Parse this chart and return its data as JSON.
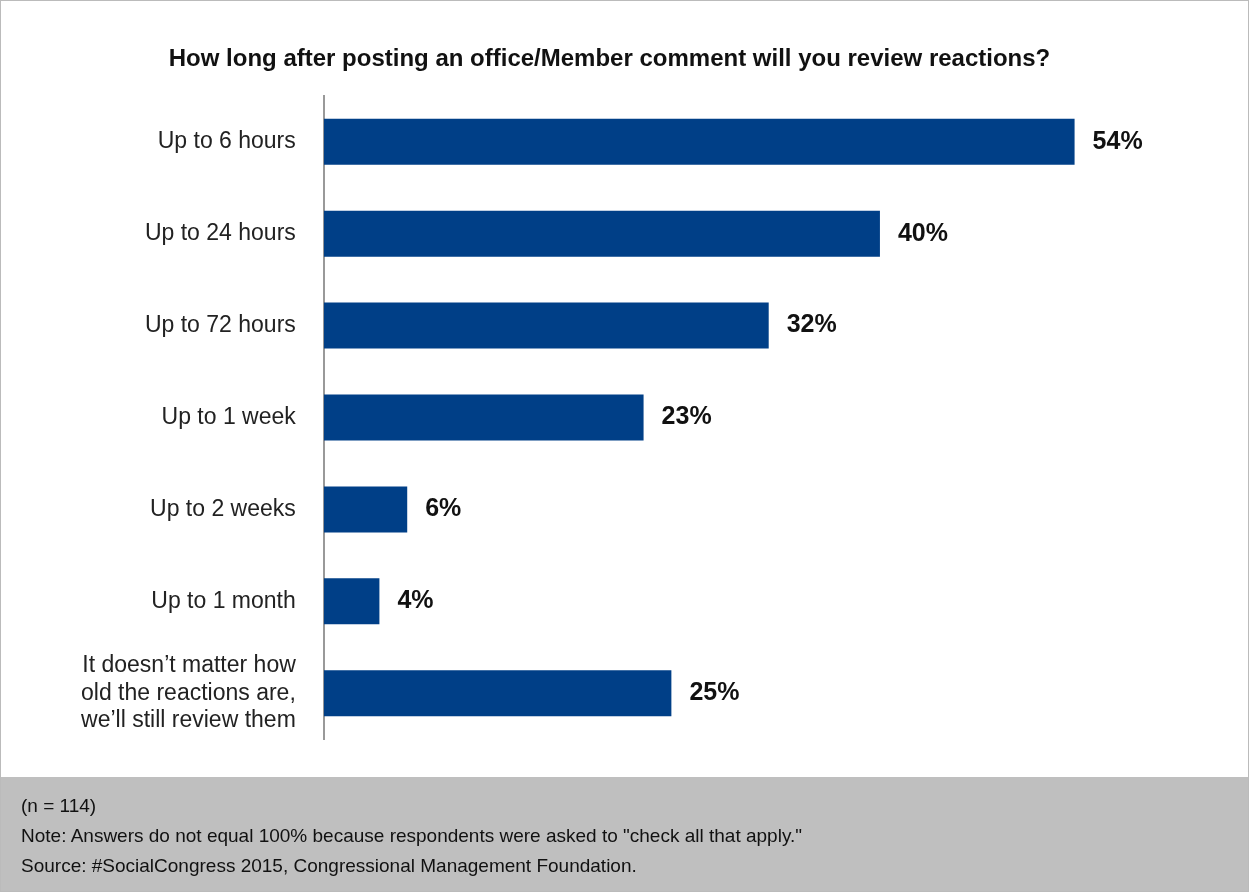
{
  "chart_data": {
    "type": "bar",
    "orientation": "horizontal",
    "title": "How long after posting an office/Member comment will you review reactions?",
    "categories": [
      "Up to 6 hours",
      "Up to 24 hours",
      "Up to 72 hours",
      "Up to 1 week",
      "Up to 2 weeks",
      "Up to 1 month",
      "It doesn’t matter how old the reactions are, we’ll still review them"
    ],
    "values": [
      54,
      40,
      32,
      23,
      6,
      4,
      25
    ],
    "color": "#003f87",
    "value_labels": [
      "54%",
      "40%",
      "32%",
      "23%",
      "6%",
      "4%",
      "25%"
    ],
    "tick_labels": "y",
    "grid": false,
    "legend": false,
    "annotations": [
      "(n = 114)",
      "Note: Answers do not equal 100% because respondents were asked to \"check all that apply.\"",
      "Source: #SocialCongress 2015, Congressional Management Foundation."
    ]
  }
}
